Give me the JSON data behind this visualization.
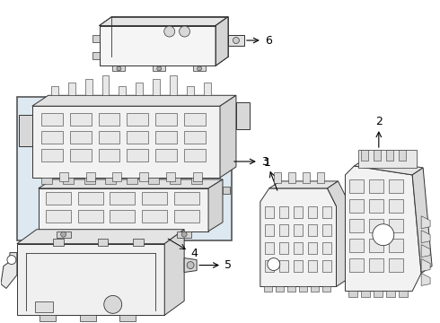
{
  "background_color": "#ffffff",
  "line_color": "#333333",
  "fig_width": 4.9,
  "fig_height": 3.6,
  "dpi": 100,
  "box3_fill": "#dde8f0",
  "part_fill": "#f8f8f8",
  "part_fill2": "#eeeeee",
  "part_dark": "#d8d8d8"
}
